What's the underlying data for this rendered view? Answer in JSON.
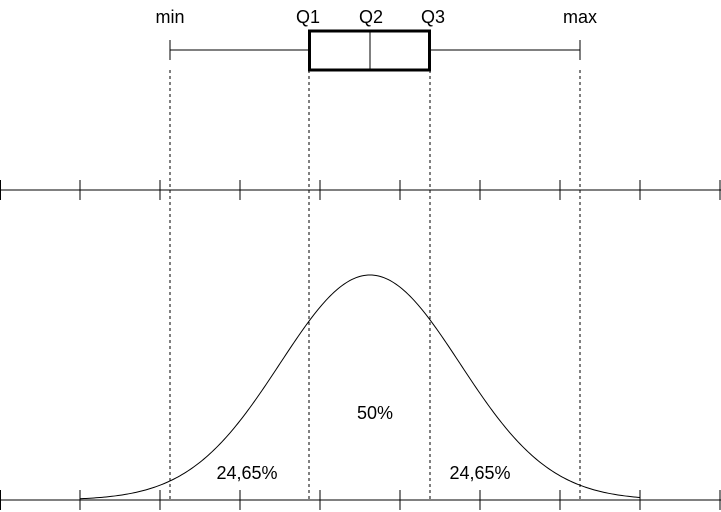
{
  "boxplot": {
    "labels": {
      "min": "min",
      "q1": "Q1",
      "q2": "Q2",
      "q3": "Q3",
      "max": "max"
    }
  },
  "distribution": {
    "center_region": "50%",
    "left_region": "24,65%",
    "right_region": "24,65%"
  },
  "colors": {
    "line": "#000000",
    "background": "#ffffff"
  }
}
